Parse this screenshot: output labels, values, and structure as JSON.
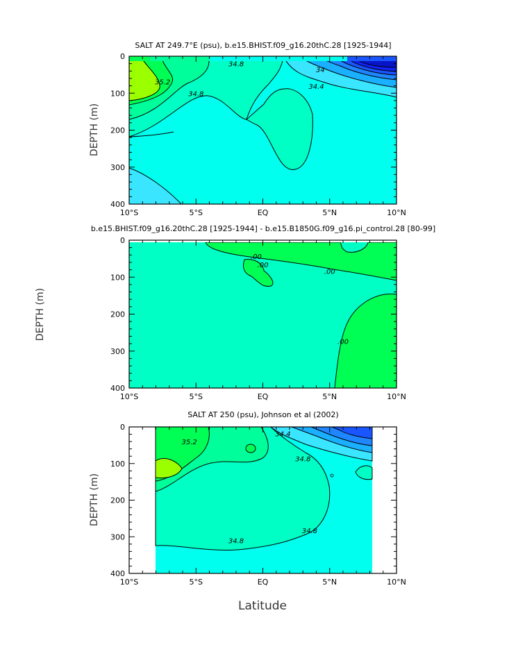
{
  "chart_data": [
    {
      "type": "contour",
      "title": "SALT AT 249.7°E (psu), b.e15.BHIST.f09_g16.20thC.28 [1925-1944]",
      "ylabel": "DEPTH (m)",
      "xlim": [
        -10,
        10
      ],
      "ylim": [
        0,
        400
      ],
      "x_ticks": [
        "10°S",
        "5°S",
        "EQ",
        "5°N",
        "10°N"
      ],
      "y_ticks": [
        "0",
        "100",
        "200",
        "300",
        "400"
      ],
      "contour_labels": [
        {
          "label": "35.2",
          "lat": -7.5,
          "depth": 70
        },
        {
          "label": "34.8",
          "lat": -2.0,
          "depth": 22
        },
        {
          "label": "34.8",
          "lat": -5.0,
          "depth": 102
        },
        {
          "label": "34",
          "lat": 4.3,
          "depth": 38
        },
        {
          "label": "34.4",
          "lat": 4.0,
          "depth": 83
        }
      ]
    },
    {
      "type": "contour",
      "title": "b.e15.BHIST.f09_g16.20thC.28 [1925-1944] - b.e15.B1850G.f09_g16.pi_control.28 [80-99]",
      "ylabel": "DEPTH (m)",
      "xlim": [
        -10,
        10
      ],
      "ylim": [
        0,
        400
      ],
      "x_ticks": [
        "10°S",
        "5°S",
        "EQ",
        "5°N",
        "10°N"
      ],
      "y_ticks": [
        "0",
        "100",
        "200",
        "300",
        "400"
      ],
      "contour_labels": [
        {
          "label": ".00",
          "lat": -0.5,
          "depth": 45
        },
        {
          "label": ".00",
          "lat": 0.0,
          "depth": 68
        },
        {
          "label": ".00",
          "lat": 5.0,
          "depth": 85
        },
        {
          "label": ".00",
          "lat": 6.0,
          "depth": 275
        }
      ]
    },
    {
      "type": "contour",
      "title": "SALT AT 250 (psu), Johnson et al (2002)",
      "xlabel": "Latitude",
      "ylabel": "DEPTH (m)",
      "xlim": [
        -10,
        10
      ],
      "ylim": [
        0,
        400
      ],
      "x_ticks": [
        "10°S",
        "5°S",
        "EQ",
        "5°N",
        "10°N"
      ],
      "y_ticks": [
        "0",
        "100",
        "200",
        "300",
        "400"
      ],
      "data_lat_range": [
        -8,
        8
      ],
      "contour_labels": [
        {
          "label": "35.2",
          "lat": -5.5,
          "depth": 42
        },
        {
          "label": "34.4",
          "lat": 1.5,
          "depth": 20
        },
        {
          "label": "34.8",
          "lat": 3.0,
          "depth": 88
        },
        {
          "label": "34.8",
          "lat": 3.5,
          "depth": 284
        },
        {
          "label": "34.8",
          "lat": -2.0,
          "depth": 312
        }
      ]
    }
  ]
}
